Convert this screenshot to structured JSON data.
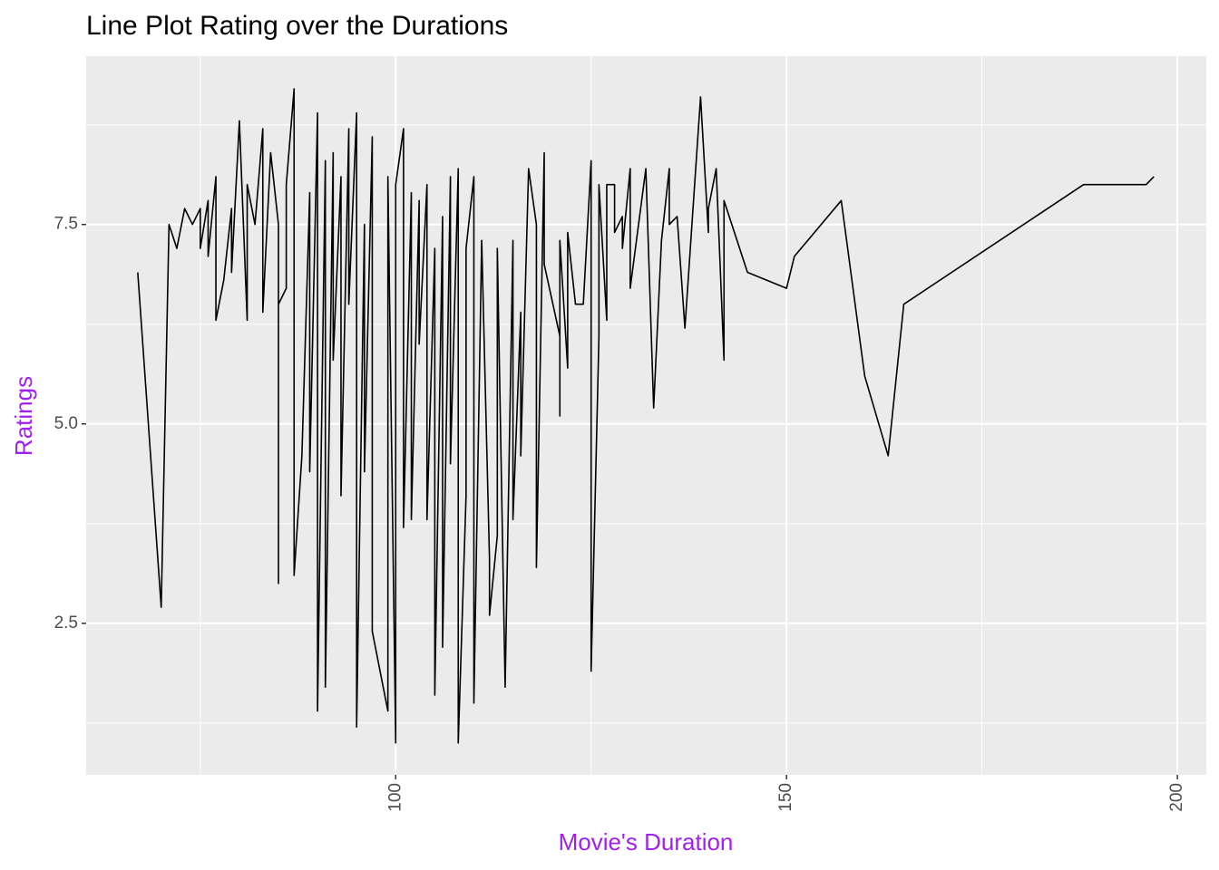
{
  "chart_data": {
    "type": "line",
    "title": "Line Plot Rating over the Durations",
    "x_label": "Movie's Duration",
    "y_label": "Ratings",
    "x": [
      67,
      70,
      71,
      72,
      73,
      74,
      75,
      75,
      76,
      76,
      77,
      77,
      78,
      79,
      79,
      80,
      81,
      81,
      82,
      83,
      83,
      84,
      85,
      85,
      85,
      86,
      86,
      87,
      87,
      88,
      89,
      89,
      90,
      90,
      91,
      91,
      92,
      92,
      93,
      93,
      94,
      94,
      95,
      95,
      96,
      96,
      97,
      97,
      99,
      99,
      100,
      100,
      101,
      101,
      102,
      102,
      103,
      103,
      104,
      104,
      105,
      105,
      106,
      106,
      107,
      107,
      108,
      108,
      109,
      109,
      110,
      110,
      111,
      112,
      112,
      113,
      113,
      114,
      115,
      115,
      116,
      116,
      117,
      118,
      118,
      119,
      119,
      121,
      121,
      121,
      122,
      122,
      123,
      124,
      125,
      125,
      126,
      126,
      127,
      127,
      128,
      128,
      129,
      129,
      130,
      130,
      132,
      133,
      134,
      135,
      135,
      136,
      137,
      139,
      140,
      140,
      141,
      142,
      142,
      145,
      150,
      151,
      157,
      160,
      163,
      165,
      188,
      196,
      197
    ],
    "values": [
      6.9,
      2.7,
      7.5,
      7.2,
      7.7,
      7.5,
      7.7,
      7.2,
      7.8,
      7.1,
      8.1,
      6.3,
      6.8,
      7.7,
      6.9,
      8.8,
      6.3,
      8.0,
      7.5,
      8.7,
      6.4,
      8.4,
      7.5,
      3.0,
      6.5,
      6.7,
      8.0,
      9.2,
      3.1,
      4.6,
      7.9,
      4.4,
      8.9,
      1.4,
      8.3,
      1.7,
      8.4,
      5.8,
      8.1,
      4.1,
      8.7,
      6.5,
      8.9,
      1.2,
      7.5,
      4.4,
      8.6,
      2.4,
      1.4,
      8.1,
      1.0,
      8.0,
      8.7,
      3.7,
      7.9,
      3.8,
      7.8,
      6.0,
      8.0,
      3.8,
      7.2,
      1.6,
      7.6,
      2.2,
      8.1,
      4.5,
      8.2,
      1.0,
      4.1,
      7.2,
      8.1,
      1.5,
      7.3,
      3.3,
      2.6,
      3.6,
      7.2,
      1.7,
      7.3,
      3.8,
      6.4,
      4.6,
      8.2,
      7.5,
      3.2,
      8.4,
      7.0,
      6.1,
      5.1,
      7.3,
      5.7,
      7.4,
      6.5,
      6.5,
      8.3,
      1.9,
      6.1,
      8.0,
      6.3,
      8.0,
      8.0,
      7.4,
      7.6,
      7.2,
      8.2,
      6.7,
      8.2,
      5.2,
      7.3,
      8.2,
      7.5,
      7.6,
      6.2,
      9.1,
      7.4,
      7.7,
      8.2,
      5.8,
      7.8,
      6.9,
      6.7,
      7.1,
      7.8,
      5.6,
      4.6,
      6.5,
      8.0,
      8.0,
      8.1
    ],
    "color": "#000000",
    "xlim": [
      60.4,
      203.7
    ],
    "xticks": [
      100,
      150,
      200
    ],
    "ylim": [
      0.6,
      9.61
    ],
    "yticks": [
      2.5,
      {
        "value": 5,
        "label": "5.0"
      },
      7.5
    ],
    "grid": true
  }
}
